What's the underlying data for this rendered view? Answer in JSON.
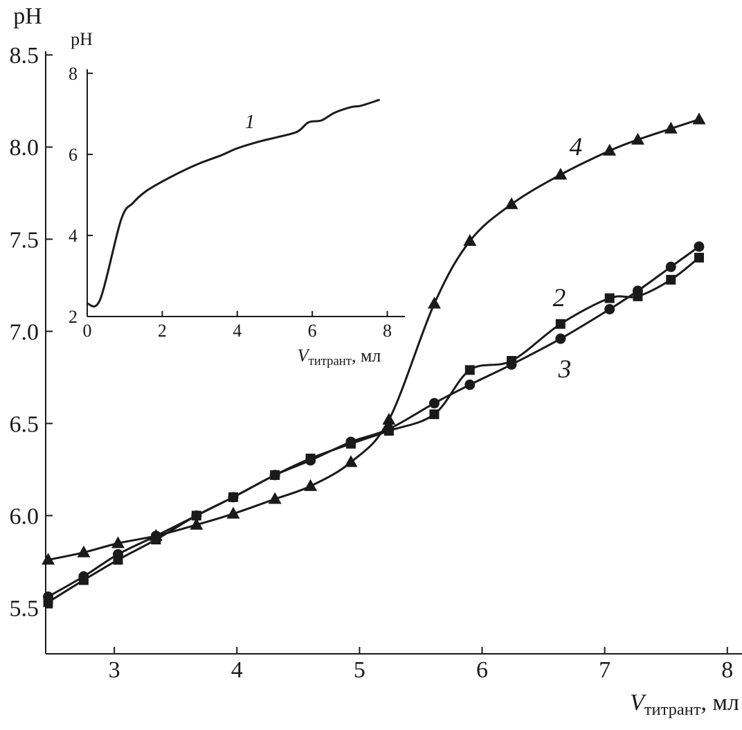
{
  "chart_data": [
    {
      "type": "line",
      "y_label": "pH",
      "x_label": {
        "symbol": "V",
        "subscript": "титрант",
        "unit": ", мл"
      },
      "x": [
        2.46,
        2.75,
        3.03,
        3.34,
        3.67,
        3.97,
        4.31,
        4.6,
        4.93,
        5.24,
        5.61,
        5.9,
        6.24,
        6.64,
        7.04,
        7.27,
        7.54,
        7.77
      ],
      "series": [
        {
          "name": "2",
          "color": "#1a1a1a",
          "marker": "square",
          "values": [
            5.53,
            5.65,
            5.76,
            5.87,
            6.0,
            6.1,
            6.22,
            6.31,
            6.39,
            6.46,
            6.55,
            6.79,
            6.84,
            7.04,
            7.18,
            7.19,
            7.28,
            7.4
          ]
        },
        {
          "name": "3",
          "color": "#1a1a1a",
          "marker": "circle",
          "values": [
            5.56,
            5.67,
            5.79,
            5.89,
            6.0,
            6.1,
            6.22,
            6.3,
            6.4,
            6.47,
            6.61,
            6.71,
            6.82,
            6.96,
            7.12,
            7.22,
            7.35,
            7.46
          ]
        },
        {
          "name": "4",
          "color": "#1a1a1a",
          "marker": "triangle",
          "values": [
            5.76,
            5.8,
            5.85,
            5.89,
            5.95,
            6.01,
            6.09,
            6.16,
            6.29,
            6.52,
            7.15,
            7.49,
            7.69,
            7.85,
            7.98,
            8.04,
            8.1,
            8.15
          ]
        }
      ],
      "xlim": [
        2.44,
        8.12
      ],
      "xticks": [
        3,
        4,
        5,
        6,
        7,
        8
      ],
      "ylim": [
        5.25,
        8.52
      ],
      "yticks": [
        5.5,
        {
          "value": 6,
          "label": "6.0"
        },
        6.5,
        {
          "value": 7,
          "label": "7.0"
        },
        7.5,
        {
          "value": 8,
          "label": "8.0"
        },
        8.5
      ]
    },
    {
      "type": "line",
      "y_label": "pH",
      "x_label": {
        "symbol": "V",
        "subscript": "титрант",
        "unit": ", мл"
      },
      "x": [
        0,
        0.35,
        0.9,
        1.22,
        1.55,
        2.0,
        2.5,
        3.0,
        3.58,
        4.0,
        4.6,
        5.05,
        5.6,
        5.9,
        6.25,
        6.6,
        7.05,
        7.3,
        7.8
      ],
      "series": [
        {
          "name": "1",
          "color": "#1a1a1a",
          "marker": "none",
          "values": [
            2.32,
            2.43,
            4.38,
            4.8,
            5.08,
            5.33,
            5.57,
            5.78,
            5.98,
            6.15,
            6.32,
            6.42,
            6.56,
            6.79,
            6.84,
            7.03,
            7.17,
            7.2,
            7.35
          ]
        }
      ],
      "xlim": [
        0,
        8.47
      ],
      "xticks": [
        0,
        2,
        4,
        6,
        8
      ],
      "ylim": [
        2,
        8.1
      ],
      "yticks": [
        2,
        4,
        6,
        8
      ]
    }
  ]
}
